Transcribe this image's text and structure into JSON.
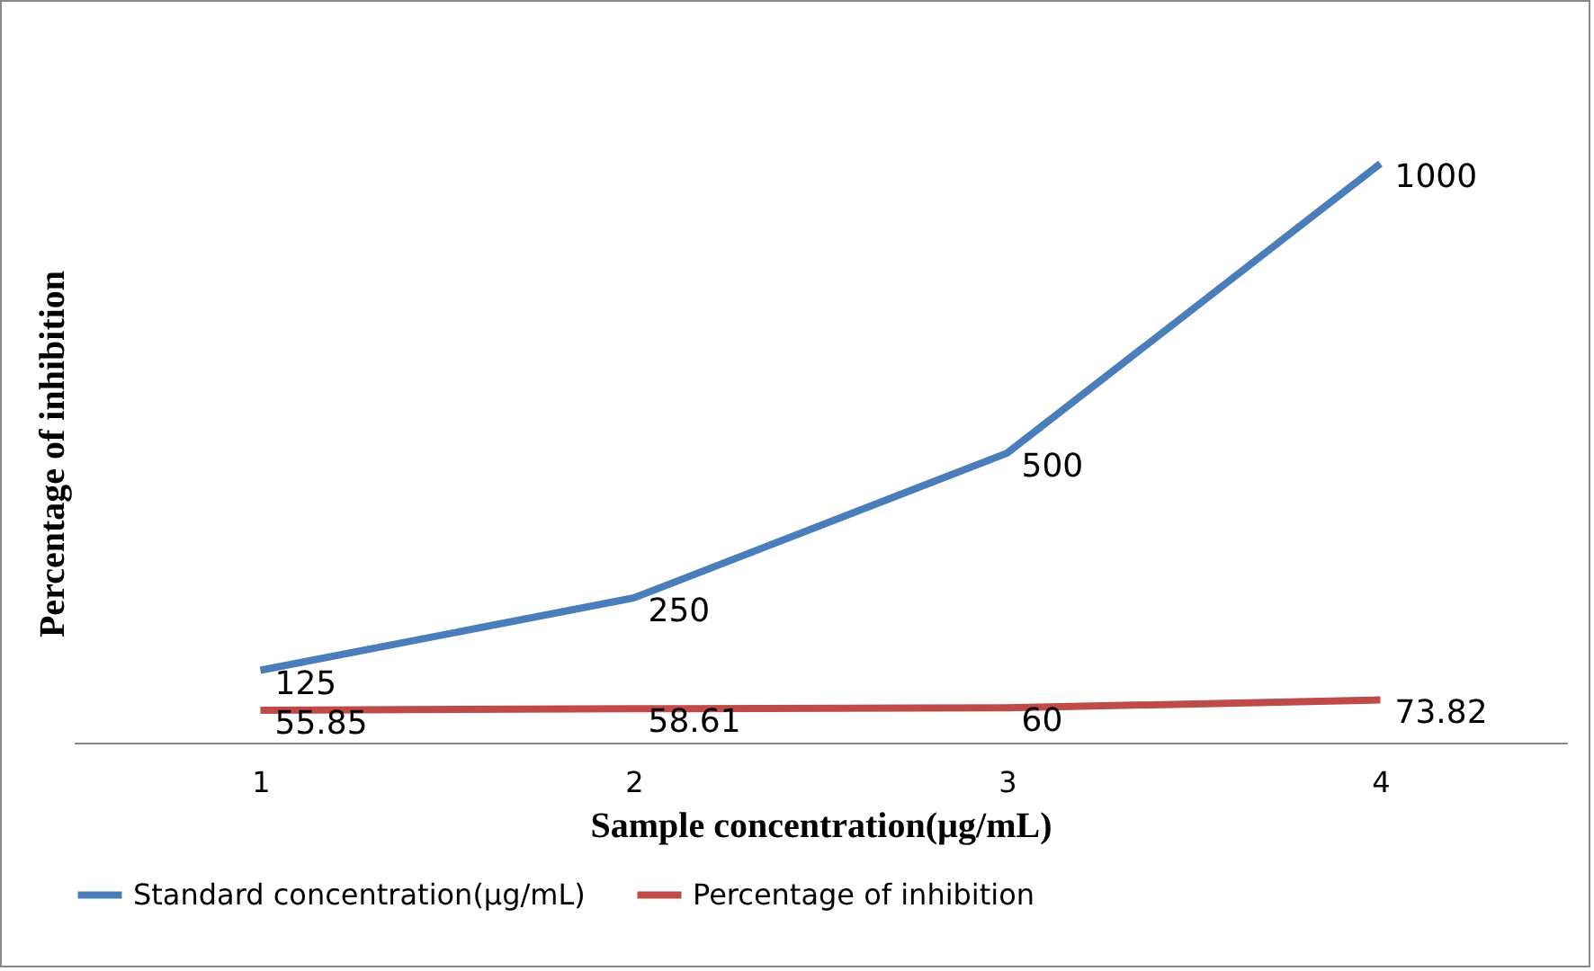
{
  "chart_data": {
    "type": "line",
    "xlabel": "Sample concentration(µg/mL)",
    "ylabel": "Percentage of inhibition",
    "categories": [
      "1",
      "2",
      "3",
      "4"
    ],
    "series": [
      {
        "name": "Standard concentration(µg/mL)",
        "color": "#4a7ebb",
        "values": [
          125,
          250,
          500,
          1000
        ]
      },
      {
        "name": "Percentage of inhibition",
        "color": "#be4b48",
        "values": [
          55.85,
          58.61,
          60,
          73.82
        ]
      }
    ],
    "data_labels": true,
    "legend": "bottom",
    "tick_labels": "x",
    "grid": false,
    "marker": "none",
    "line_style": "solid"
  }
}
